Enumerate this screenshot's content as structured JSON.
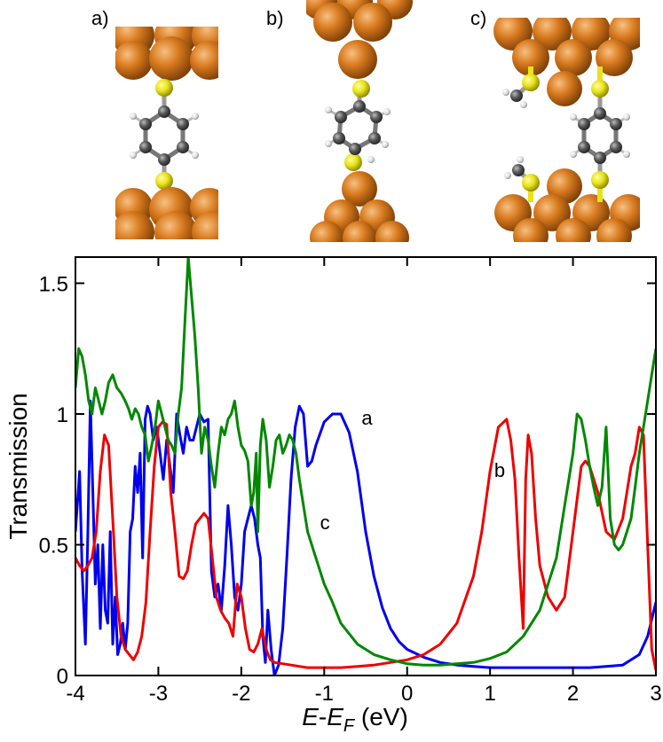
{
  "panels": [
    {
      "label": "a)"
    },
    {
      "label": "b)"
    },
    {
      "label": "c)"
    }
  ],
  "colors": {
    "gold_atom": "#d87a1f",
    "sulfur_atom": "#e8e21c",
    "carbon_atom": "#555555",
    "hydrogen_atom": "#eeeeee"
  },
  "chart_data": {
    "type": "line",
    "xlabel_parts": [
      "E",
      "-",
      "E",
      "F",
      " (eV)"
    ],
    "ylabel": "Transmission",
    "xlim": [
      -4,
      3
    ],
    "ylim": [
      0,
      1.6
    ],
    "xticks": [
      -4,
      -3,
      -2,
      -1,
      0,
      1,
      2,
      3
    ],
    "xtick_labels": [
      "-4",
      "-3",
      "-2",
      "-1",
      "0",
      "1",
      "2",
      "3"
    ],
    "yticks": [
      0,
      0.5,
      1,
      1.5
    ],
    "ytick_labels": [
      "0",
      "0.5",
      "1",
      "1.5"
    ],
    "grid": false,
    "series": [
      {
        "name": "a",
        "color": "#0000ee",
        "label_at": [
          -0.55,
          0.96
        ],
        "x": [
          -4.0,
          -3.95,
          -3.92,
          -3.88,
          -3.85,
          -3.82,
          -3.79,
          -3.76,
          -3.73,
          -3.7,
          -3.67,
          -3.64,
          -3.61,
          -3.58,
          -3.55,
          -3.52,
          -3.49,
          -3.46,
          -3.43,
          -3.4,
          -3.37,
          -3.34,
          -3.31,
          -3.28,
          -3.25,
          -3.22,
          -3.19,
          -3.16,
          -3.13,
          -3.1,
          -3.06,
          -3.02,
          -2.98,
          -2.94,
          -2.9,
          -2.86,
          -2.82,
          -2.78,
          -2.74,
          -2.7,
          -2.66,
          -2.62,
          -2.58,
          -2.54,
          -2.5,
          -2.45,
          -2.4,
          -2.36,
          -2.32,
          -2.28,
          -2.24,
          -2.2,
          -2.16,
          -2.12,
          -2.08,
          -2.04,
          -2.0,
          -1.96,
          -1.92,
          -1.88,
          -1.84,
          -1.8,
          -1.77,
          -1.74,
          -1.71,
          -1.68,
          -1.64,
          -1.6,
          -1.55,
          -1.5,
          -1.45,
          -1.4,
          -1.35,
          -1.3,
          -1.25,
          -1.2,
          -1.15,
          -1.1,
          -1.0,
          -0.9,
          -0.8,
          -0.7,
          -0.6,
          -0.5,
          -0.4,
          -0.3,
          -0.2,
          -0.1,
          0.0,
          0.2,
          0.4,
          0.6,
          0.8,
          1.0,
          1.2,
          1.4,
          1.6,
          1.8,
          2.0,
          2.2,
          2.4,
          2.6,
          2.8,
          2.9,
          3.0
        ],
        "y": [
          0.55,
          0.78,
          0.4,
          0.12,
          0.55,
          1.05,
          0.7,
          0.35,
          0.5,
          0.18,
          0.5,
          0.25,
          0.2,
          0.55,
          0.12,
          0.3,
          0.08,
          0.12,
          0.2,
          0.1,
          0.2,
          0.55,
          0.6,
          0.8,
          0.7,
          0.85,
          0.45,
          0.98,
          1.03,
          1.0,
          0.9,
          0.95,
          0.85,
          0.75,
          0.9,
          0.8,
          0.7,
          1.0,
          0.92,
          0.85,
          0.95,
          0.9,
          0.9,
          0.95,
          1.0,
          0.97,
          0.98,
          0.4,
          0.3,
          0.35,
          0.25,
          0.42,
          0.65,
          0.5,
          0.3,
          0.25,
          0.35,
          0.55,
          0.6,
          0.65,
          0.6,
          0.5,
          0.45,
          0.15,
          0.05,
          0.25,
          0.1,
          0.0,
          0.04,
          0.18,
          0.45,
          0.75,
          0.95,
          1.03,
          1.0,
          0.8,
          0.82,
          0.88,
          0.97,
          1.0,
          1.0,
          0.93,
          0.78,
          0.55,
          0.38,
          0.26,
          0.18,
          0.13,
          0.1,
          0.07,
          0.05,
          0.04,
          0.035,
          0.03,
          0.03,
          0.03,
          0.03,
          0.03,
          0.03,
          0.03,
          0.035,
          0.04,
          0.08,
          0.15,
          0.28
        ]
      },
      {
        "name": "b",
        "color": "#ee0000",
        "label_at": [
          1.05,
          0.76
        ],
        "x": [
          -4.0,
          -3.95,
          -3.9,
          -3.85,
          -3.8,
          -3.75,
          -3.7,
          -3.65,
          -3.6,
          -3.55,
          -3.5,
          -3.45,
          -3.4,
          -3.35,
          -3.3,
          -3.25,
          -3.2,
          -3.15,
          -3.1,
          -3.05,
          -3.0,
          -2.95,
          -2.9,
          -2.85,
          -2.8,
          -2.75,
          -2.7,
          -2.65,
          -2.6,
          -2.55,
          -2.5,
          -2.45,
          -2.4,
          -2.35,
          -2.3,
          -2.25,
          -2.2,
          -2.15,
          -2.1,
          -2.05,
          -2.0,
          -1.95,
          -1.9,
          -1.85,
          -1.8,
          -1.75,
          -1.7,
          -1.65,
          -1.6,
          -1.5,
          -1.4,
          -1.3,
          -1.2,
          -1.0,
          -0.8,
          -0.6,
          -0.4,
          -0.2,
          0.0,
          0.2,
          0.4,
          0.6,
          0.8,
          0.9,
          1.0,
          1.1,
          1.2,
          1.25,
          1.3,
          1.35,
          1.4,
          1.43,
          1.46,
          1.5,
          1.55,
          1.6,
          1.7,
          1.8,
          1.9,
          2.0,
          2.1,
          2.15,
          2.2,
          2.3,
          2.4,
          2.5,
          2.6,
          2.7,
          2.75,
          2.8,
          2.85,
          2.9,
          2.95,
          3.0
        ],
        "y": [
          0.45,
          0.42,
          0.4,
          0.42,
          0.45,
          0.55,
          0.78,
          0.92,
          0.88,
          0.6,
          0.3,
          0.15,
          0.1,
          0.08,
          0.06,
          0.09,
          0.15,
          0.28,
          0.55,
          0.8,
          0.95,
          0.97,
          0.96,
          0.7,
          0.55,
          0.38,
          0.37,
          0.4,
          0.5,
          0.58,
          0.6,
          0.62,
          0.6,
          0.45,
          0.3,
          0.25,
          0.22,
          0.2,
          0.15,
          0.35,
          0.3,
          0.18,
          0.1,
          0.09,
          0.12,
          0.18,
          0.1,
          0.06,
          0.05,
          0.045,
          0.04,
          0.035,
          0.03,
          0.03,
          0.03,
          0.035,
          0.04,
          0.05,
          0.06,
          0.08,
          0.12,
          0.2,
          0.38,
          0.55,
          0.78,
          0.95,
          0.98,
          0.9,
          0.75,
          0.45,
          0.18,
          0.75,
          0.92,
          0.85,
          0.6,
          0.42,
          0.3,
          0.25,
          0.3,
          0.55,
          0.8,
          0.82,
          0.8,
          0.7,
          0.55,
          0.52,
          0.6,
          0.8,
          0.85,
          0.95,
          0.92,
          0.5,
          0.1,
          0.02
        ]
      },
      {
        "name": "c",
        "color": "#008800",
        "label_at": [
          -1.05,
          0.56
        ],
        "x": [
          -4.0,
          -3.96,
          -3.92,
          -3.88,
          -3.84,
          -3.8,
          -3.76,
          -3.72,
          -3.68,
          -3.64,
          -3.6,
          -3.55,
          -3.5,
          -3.45,
          -3.4,
          -3.36,
          -3.32,
          -3.28,
          -3.24,
          -3.2,
          -3.16,
          -3.12,
          -3.08,
          -3.04,
          -3.0,
          -2.96,
          -2.92,
          -2.88,
          -2.84,
          -2.8,
          -2.76,
          -2.72,
          -2.68,
          -2.64,
          -2.6,
          -2.56,
          -2.52,
          -2.48,
          -2.44,
          -2.4,
          -2.36,
          -2.32,
          -2.28,
          -2.24,
          -2.2,
          -2.16,
          -2.12,
          -2.08,
          -2.04,
          -2.0,
          -1.96,
          -1.92,
          -1.88,
          -1.85,
          -1.82,
          -1.8,
          -1.77,
          -1.74,
          -1.7,
          -1.66,
          -1.62,
          -1.58,
          -1.54,
          -1.5,
          -1.46,
          -1.42,
          -1.38,
          -1.34,
          -1.3,
          -1.25,
          -1.2,
          -1.1,
          -1.0,
          -0.9,
          -0.8,
          -0.6,
          -0.4,
          -0.2,
          0.0,
          0.2,
          0.4,
          0.6,
          0.8,
          1.0,
          1.2,
          1.4,
          1.6,
          1.8,
          1.9,
          2.0,
          2.05,
          2.1,
          2.15,
          2.2,
          2.25,
          2.3,
          2.35,
          2.4,
          2.45,
          2.5,
          2.55,
          2.6,
          2.65,
          2.7,
          2.75,
          2.8,
          2.85,
          2.9,
          2.95,
          3.0
        ],
        "y": [
          1.1,
          1.25,
          1.22,
          1.15,
          1.05,
          1.0,
          1.1,
          1.05,
          1.0,
          1.05,
          1.12,
          1.15,
          1.1,
          1.08,
          1.05,
          1.02,
          0.98,
          1.02,
          1.0,
          0.95,
          0.92,
          0.82,
          0.88,
          0.95,
          1.05,
          1.0,
          0.95,
          0.9,
          0.88,
          0.85,
          1.0,
          1.1,
          1.35,
          1.6,
          1.45,
          1.3,
          1.1,
          0.85,
          0.95,
          0.9,
          0.8,
          0.72,
          0.85,
          0.95,
          0.92,
          0.98,
          1.0,
          1.05,
          0.95,
          0.88,
          0.86,
          0.82,
          0.65,
          0.7,
          0.85,
          0.55,
          0.88,
          0.98,
          0.9,
          0.72,
          0.8,
          0.9,
          0.92,
          0.85,
          0.88,
          0.92,
          0.9,
          0.85,
          0.75,
          0.65,
          0.55,
          0.45,
          0.35,
          0.28,
          0.2,
          0.12,
          0.08,
          0.06,
          0.045,
          0.04,
          0.04,
          0.045,
          0.05,
          0.065,
          0.09,
          0.15,
          0.25,
          0.45,
          0.65,
          0.85,
          1.0,
          0.98,
          0.9,
          0.8,
          0.72,
          0.65,
          0.72,
          0.95,
          0.6,
          0.5,
          0.48,
          0.5,
          0.55,
          0.6,
          0.72,
          0.85,
          0.95,
          1.05,
          1.15,
          1.25
        ]
      }
    ]
  }
}
